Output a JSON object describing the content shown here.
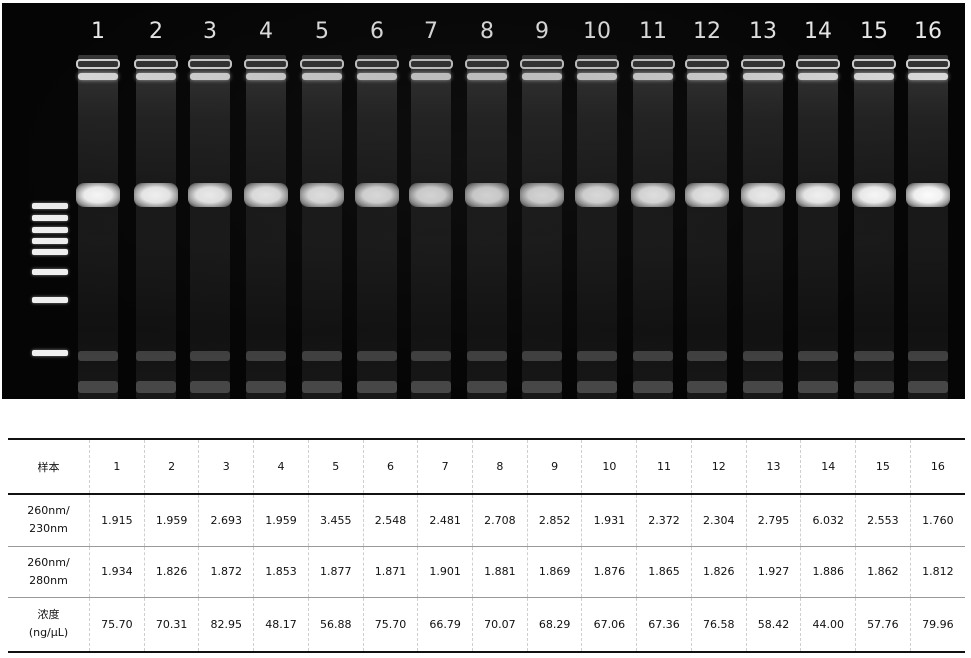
{
  "gel": {
    "lane_labels": [
      "1",
      "2",
      "3",
      "4",
      "5",
      "6",
      "7",
      "8",
      "9",
      "10",
      "11",
      "12",
      "13",
      "14",
      "15",
      "16"
    ]
  },
  "table": {
    "header_label": "样本",
    "sample_ids": [
      "1",
      "2",
      "3",
      "4",
      "5",
      "6",
      "7",
      "8",
      "9",
      "10",
      "11",
      "12",
      "13",
      "14",
      "15",
      "16"
    ],
    "rows": [
      {
        "label_line1": "260nm/",
        "label_line2": "230nm",
        "values": [
          "1.915",
          "1.959",
          "2.693",
          "1.959",
          "3.455",
          "2.548",
          "2.481",
          "2.708",
          "2.852",
          "1.931",
          "2.372",
          "2.304",
          "2.795",
          "6.032",
          "2.553",
          "1.760"
        ]
      },
      {
        "label_line1": "260nm/",
        "label_line2": "280nm",
        "values": [
          "1.934",
          "1.826",
          "1.872",
          "1.853",
          "1.877",
          "1.871",
          "1.901",
          "1.881",
          "1.869",
          "1.876",
          "1.865",
          "1.826",
          "1.927",
          "1.886",
          "1.862",
          "1.812"
        ]
      },
      {
        "label_line1": "浓度",
        "label_line2": "(ng/μL)",
        "values": [
          "75.70",
          "70.31",
          "82.95",
          "48.17",
          "56.88",
          "75.70",
          "66.79",
          "70.07",
          "68.29",
          "67.06",
          "67.36",
          "76.58",
          "58.42",
          "44.00",
          "57.76",
          "79.96"
        ]
      }
    ]
  }
}
